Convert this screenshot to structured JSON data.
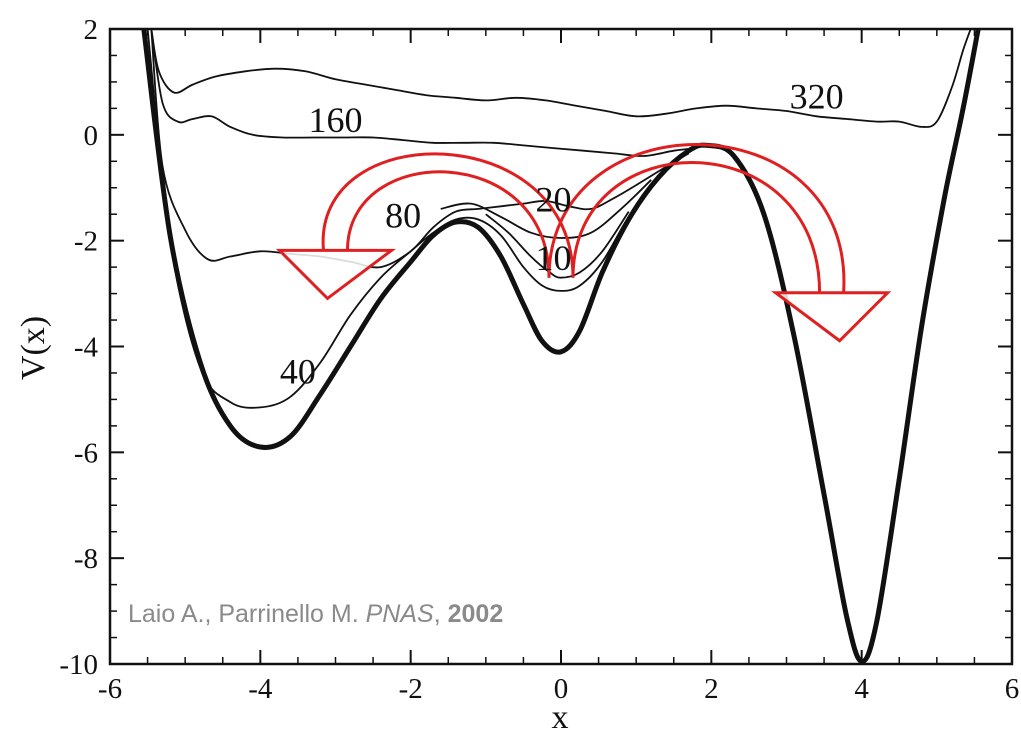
{
  "chart_data": {
    "type": "line",
    "xlabel": "x",
    "ylabel": "V(x)",
    "xlim": [
      -6,
      6
    ],
    "ylim": [
      -10,
      2
    ],
    "xticks": [
      "-6",
      "-4",
      "-2",
      "0",
      "2",
      "4",
      "6"
    ],
    "yticks": [
      "2",
      "0",
      "-2",
      "-4",
      "-6",
      "-8",
      "-10"
    ],
    "grid": false,
    "series": [
      {
        "label": "",
        "points": [
          [
            -5.55,
            2.0
          ],
          [
            -5.2,
            -1.9
          ],
          [
            -4.8,
            -4.3
          ],
          [
            -4.4,
            -5.5
          ],
          [
            -4.0,
            -5.9
          ],
          [
            -3.6,
            -5.7
          ],
          [
            -3.2,
            -4.9
          ],
          [
            -2.8,
            -4.0
          ],
          [
            -2.4,
            -3.1
          ],
          [
            -2.0,
            -2.4
          ],
          [
            -1.7,
            -1.9
          ],
          [
            -1.4,
            -1.65
          ],
          [
            -1.1,
            -1.75
          ],
          [
            -0.8,
            -2.3
          ],
          [
            -0.5,
            -3.2
          ],
          [
            -0.25,
            -3.9
          ],
          [
            0.0,
            -4.1
          ],
          [
            0.25,
            -3.7
          ],
          [
            0.55,
            -2.6
          ],
          [
            0.9,
            -1.6
          ],
          [
            1.3,
            -0.8
          ],
          [
            1.7,
            -0.3
          ],
          [
            1.95,
            -0.2
          ],
          [
            2.3,
            -0.4
          ],
          [
            2.7,
            -1.5
          ],
          [
            3.1,
            -3.8
          ],
          [
            3.5,
            -6.8
          ],
          [
            3.8,
            -9.1
          ],
          [
            4.0,
            -9.95
          ],
          [
            4.2,
            -9.2
          ],
          [
            4.5,
            -6.5
          ],
          [
            4.8,
            -3.6
          ],
          [
            5.1,
            -1.2
          ],
          [
            5.35,
            0.5
          ],
          [
            5.55,
            2.0
          ]
        ]
      },
      {
        "label": "40",
        "points": [
          [
            -5.5,
            2.0
          ],
          [
            -5.2,
            -2.0
          ],
          [
            -4.8,
            -4.4
          ],
          [
            -4.4,
            -5.05
          ],
          [
            -4.0,
            -5.15
          ],
          [
            -3.6,
            -4.95
          ],
          [
            -3.2,
            -4.3
          ],
          [
            -2.8,
            -3.4
          ],
          [
            -2.4,
            -2.7
          ],
          [
            -2.0,
            -2.2
          ],
          [
            -1.7,
            -1.85
          ],
          [
            -1.4,
            -1.6
          ],
          [
            -1.1,
            -1.6
          ],
          [
            -0.8,
            -1.9
          ],
          [
            -0.5,
            -2.5
          ],
          [
            -0.25,
            -2.85
          ],
          [
            0.0,
            -2.95
          ],
          [
            0.25,
            -2.85
          ],
          [
            0.55,
            -2.4
          ],
          [
            0.9,
            -1.55
          ],
          [
            1.3,
            -0.8
          ],
          [
            1.7,
            -0.3
          ],
          [
            1.95,
            -0.2
          ],
          [
            2.3,
            -0.4
          ],
          [
            2.7,
            -1.5
          ],
          [
            3.1,
            -3.8
          ],
          [
            3.5,
            -6.8
          ],
          [
            3.8,
            -9.1
          ],
          [
            4.0,
            -9.95
          ],
          [
            4.2,
            -9.2
          ],
          [
            4.5,
            -6.5
          ],
          [
            4.8,
            -3.6
          ],
          [
            5.1,
            -1.2
          ],
          [
            5.35,
            0.5
          ],
          [
            5.55,
            2.0
          ]
        ]
      },
      {
        "label": "10",
        "points": [
          [
            -1.0,
            -1.5
          ],
          [
            -0.7,
            -1.85
          ],
          [
            -0.4,
            -2.3
          ],
          [
            -0.15,
            -2.6
          ],
          [
            0.0,
            -2.7
          ],
          [
            0.25,
            -2.6
          ],
          [
            0.55,
            -2.2
          ],
          [
            0.9,
            -1.45
          ]
        ]
      },
      {
        "label": "20",
        "points": [
          [
            -1.6,
            -1.4
          ],
          [
            -1.2,
            -1.3
          ],
          [
            -0.8,
            -1.55
          ],
          [
            -0.4,
            -1.85
          ],
          [
            0.0,
            -1.95
          ],
          [
            0.4,
            -1.85
          ],
          [
            0.8,
            -1.4
          ],
          [
            1.2,
            -0.85
          ]
        ]
      },
      {
        "label": "80",
        "points": [
          [
            -5.45,
            2.0
          ],
          [
            -5.3,
            -0.6
          ],
          [
            -5.0,
            -1.8
          ],
          [
            -4.7,
            -2.35
          ],
          [
            -4.4,
            -2.3
          ],
          [
            -4.0,
            -2.2
          ],
          [
            -3.6,
            -2.25
          ],
          [
            -3.2,
            -2.3
          ],
          [
            -2.8,
            -2.4
          ],
          [
            -2.4,
            -2.5
          ],
          [
            -2.0,
            -2.2
          ],
          [
            -1.7,
            -1.75
          ],
          [
            -1.4,
            -1.45
          ],
          [
            -1.1,
            -1.4
          ],
          [
            -0.8,
            -1.35
          ],
          [
            -0.5,
            -1.3
          ],
          [
            -0.2,
            -1.25
          ],
          [
            0.1,
            -1.35
          ],
          [
            0.4,
            -1.4
          ],
          [
            0.7,
            -1.2
          ],
          [
            1.0,
            -0.95
          ],
          [
            1.4,
            -0.6
          ],
          [
            1.7,
            -0.35
          ]
        ]
      },
      {
        "label": "160",
        "points": [
          [
            -5.45,
            2.0
          ],
          [
            -5.3,
            0.6
          ],
          [
            -5.1,
            0.25
          ],
          [
            -4.9,
            0.3
          ],
          [
            -4.65,
            0.35
          ],
          [
            -4.4,
            0.15
          ],
          [
            -4.1,
            0.0
          ],
          [
            -3.7,
            -0.05
          ],
          [
            -3.3,
            -0.05
          ],
          [
            -2.9,
            -0.05
          ],
          [
            -2.5,
            -0.05
          ],
          [
            -2.1,
            -0.1
          ],
          [
            -1.7,
            -0.15
          ],
          [
            -1.3,
            -0.15
          ],
          [
            -0.9,
            -0.15
          ],
          [
            -0.5,
            -0.2
          ],
          [
            -0.1,
            -0.25
          ],
          [
            0.3,
            -0.3
          ],
          [
            0.7,
            -0.35
          ],
          [
            1.1,
            -0.4
          ],
          [
            1.5,
            -0.3
          ],
          [
            1.8,
            -0.25
          ]
        ]
      },
      {
        "label": "320",
        "points": [
          [
            -5.45,
            2.0
          ],
          [
            -5.35,
            1.2
          ],
          [
            -5.15,
            0.8
          ],
          [
            -4.9,
            0.95
          ],
          [
            -4.6,
            1.1
          ],
          [
            -4.2,
            1.2
          ],
          [
            -3.8,
            1.25
          ],
          [
            -3.4,
            1.2
          ],
          [
            -3.0,
            1.05
          ],
          [
            -2.6,
            0.95
          ],
          [
            -2.2,
            0.85
          ],
          [
            -1.8,
            0.75
          ],
          [
            -1.4,
            0.7
          ],
          [
            -1.0,
            0.65
          ],
          [
            -0.6,
            0.7
          ],
          [
            -0.2,
            0.65
          ],
          [
            0.2,
            0.55
          ],
          [
            0.6,
            0.45
          ],
          [
            1.0,
            0.35
          ],
          [
            1.4,
            0.4
          ],
          [
            1.8,
            0.5
          ],
          [
            2.2,
            0.55
          ],
          [
            2.6,
            0.5
          ],
          [
            3.0,
            0.45
          ],
          [
            3.4,
            0.35
          ],
          [
            3.8,
            0.3
          ],
          [
            4.2,
            0.25
          ],
          [
            4.5,
            0.25
          ],
          [
            4.8,
            0.15
          ],
          [
            5.0,
            0.25
          ],
          [
            5.2,
            0.9
          ],
          [
            5.35,
            1.6
          ],
          [
            5.45,
            2.0
          ]
        ]
      }
    ],
    "annotations": [
      {
        "text": "320"
      },
      {
        "text": "160"
      },
      {
        "text": "80"
      },
      {
        "text": "40"
      },
      {
        "text": "20"
      },
      {
        "text": "10"
      }
    ],
    "arrows": [
      {
        "color": "#e02020",
        "from": [
          0.0,
          -2.7
        ],
        "to": [
          -3.0,
          -2.6
        ]
      },
      {
        "color": "#e02020",
        "from": [
          0.0,
          -2.7
        ],
        "to": [
          3.6,
          -3.4
        ]
      }
    ]
  },
  "credit": {
    "authors": "Laio A., Parrinello M.",
    "journal": "PNAS",
    "separator": ", ",
    "year": "2002"
  }
}
